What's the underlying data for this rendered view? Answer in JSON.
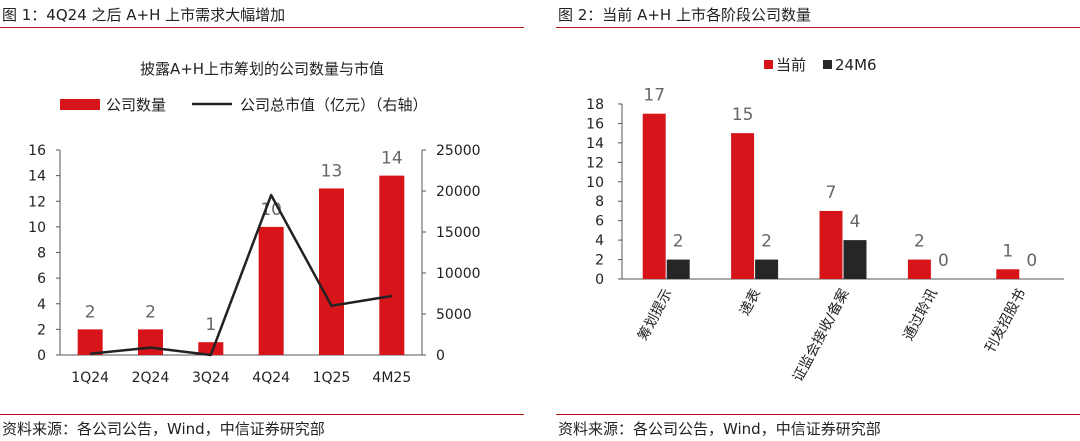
{
  "figures": [
    {
      "fig_title": "图 1：4Q24 之后 A+H 上市需求大幅增加",
      "source": "资料来源：各公司公告，Wind，中信证券研究部"
    },
    {
      "fig_title": "图 2：当前 A+H 上市各阶段公司数量",
      "source": "资料来源：各公司公告，Wind，中信证券研究部"
    }
  ],
  "chart_data": [
    {
      "type": "bar+line",
      "title": "披露A+H上市筹划的公司数量与市值",
      "categories": [
        "1Q24",
        "2Q24",
        "3Q24",
        "4Q24",
        "1Q25",
        "4M25"
      ],
      "series": [
        {
          "name": "公司数量",
          "type": "bar",
          "axis": "left",
          "color": "#d7141a",
          "values": [
            2,
            2,
            1,
            10,
            13,
            14
          ]
        },
        {
          "name": "公司总市值（亿元）（右轴）",
          "type": "line",
          "axis": "right",
          "color": "#222222",
          "values": [
            150,
            900,
            0,
            19500,
            6000,
            7200
          ]
        }
      ],
      "ylim_left": [
        0,
        16
      ],
      "yticks_left": [
        0,
        2,
        4,
        6,
        8,
        10,
        12,
        14,
        16
      ],
      "ylim_right": [
        0,
        25000
      ],
      "yticks_right": [
        0,
        5000,
        10000,
        15000,
        20000,
        25000
      ],
      "legend_position": "top",
      "grid": false
    },
    {
      "type": "bar",
      "categories": [
        "筹划提示",
        "递表",
        "证监会接收/备案",
        "通过聆讯",
        "刊发招股书"
      ],
      "series": [
        {
          "name": "当前",
          "color": "#d7141a",
          "values": [
            17,
            15,
            7,
            2,
            1
          ]
        },
        {
          "name": "24M6",
          "color": "#262626",
          "values": [
            2,
            2,
            4,
            0,
            0
          ]
        }
      ],
      "ylim": [
        0,
        18
      ],
      "yticks": [
        0,
        2,
        4,
        6,
        8,
        10,
        12,
        14,
        16,
        18
      ],
      "legend_position": "top",
      "grid": false
    }
  ]
}
